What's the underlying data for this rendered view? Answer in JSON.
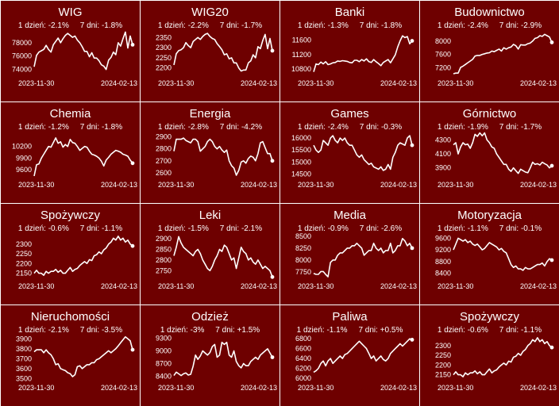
{
  "colors": {
    "background": "#6e0000",
    "line": "#ffffff",
    "divider": "#ffffff"
  },
  "chart_data": [
    {
      "type": "line",
      "title": "WIG",
      "stats": "1 dzień: -2.1%     7 dni: -1.8%",
      "x_start": "2023-11-30",
      "x_end": "2024-02-13",
      "yticks": [
        74000,
        76000,
        78000
      ],
      "ylim": [
        73000,
        80000
      ],
      "values": [
        74400,
        76100,
        76600,
        76800,
        77000,
        77600,
        77000,
        76600,
        77700,
        78200,
        78700,
        78000,
        78600,
        79100,
        79400,
        79100,
        78800,
        79000,
        78400,
        78000,
        77400,
        76700,
        76700,
        75900,
        76500,
        75700,
        75700,
        75300,
        74700,
        74500,
        74000,
        75400,
        75800,
        76600,
        76200,
        78000,
        77500,
        78600,
        79600,
        77200,
        79000,
        77700
      ]
    },
    {
      "type": "line",
      "title": "WIG20",
      "stats": "1 dzień: -2.2%     7 dni: -1.7%",
      "x_start": "2023-11-30",
      "x_end": "2024-02-13",
      "yticks": [
        2200,
        2250,
        2300,
        2350
      ],
      "ylim": [
        2160,
        2390
      ],
      "values": [
        2215,
        2270,
        2285,
        2290,
        2300,
        2325,
        2310,
        2300,
        2330,
        2340,
        2350,
        2340,
        2355,
        2365,
        2370,
        2355,
        2345,
        2340,
        2320,
        2305,
        2290,
        2265,
        2270,
        2245,
        2250,
        2225,
        2225,
        2200,
        2185,
        2190,
        2190,
        2225,
        2235,
        2265,
        2250,
        2305,
        2295,
        2335,
        2365,
        2295,
        2345,
        2285
      ]
    },
    {
      "type": "line",
      "title": "Banki",
      "stats": "1 dzień: -1.3%     7 dni: -1.8%",
      "x_start": "2023-11-30",
      "x_end": "2024-02-13",
      "yticks": [
        10800,
        11200,
        11600
      ],
      "ylim": [
        10600,
        11900
      ],
      "values": [
        10720,
        10940,
        10920,
        10990,
        10940,
        11000,
        10920,
        10940,
        10970,
        10980,
        11020,
        11010,
        11030,
        11020,
        11010,
        10980,
        10970,
        11040,
        11040,
        11000,
        11060,
        11020,
        11080,
        11000,
        10980,
        11060,
        11000,
        10950,
        10890,
        10980,
        11020,
        11060,
        10970,
        11080,
        11190,
        11410,
        11580,
        11720,
        11670,
        11700,
        11500,
        11580
      ]
    },
    {
      "type": "line",
      "title": "Budownictwo",
      "stats": "1 dzień: -2.4%     7 dni: -2.9%",
      "x_start": "2023-11-30",
      "x_end": "2024-02-13",
      "yticks": [
        7200,
        7600,
        8000
      ],
      "ylim": [
        6950,
        8350
      ],
      "values": [
        7020,
        7040,
        7040,
        7210,
        7250,
        7300,
        7350,
        7400,
        7450,
        7550,
        7570,
        7570,
        7600,
        7620,
        7640,
        7650,
        7700,
        7680,
        7720,
        7760,
        7700,
        7800,
        7760,
        7800,
        7820,
        7900,
        7860,
        7760,
        7890,
        7880,
        7880,
        7920,
        7940,
        8000,
        8080,
        8100,
        8160,
        8140,
        8200,
        8160,
        8120,
        7960
      ]
    },
    {
      "type": "line",
      "title": "Chemia",
      "stats": "1 dzień: -1.2%     7 dni: -1.8%",
      "x_start": "2023-11-30",
      "x_end": "2024-02-13",
      "yticks": [
        9600,
        9900,
        10200
      ],
      "ylim": [
        9400,
        10600
      ],
      "values": [
        9440,
        9730,
        9750,
        9900,
        10000,
        10100,
        10200,
        10180,
        10300,
        10420,
        10280,
        10320,
        10180,
        10250,
        10200,
        10380,
        10300,
        10280,
        10200,
        10100,
        10150,
        10200,
        10180,
        10080,
        10000,
        9980,
        9950,
        9900,
        9820,
        9700,
        9850,
        9920,
        10000,
        10050,
        10100,
        10080,
        10050,
        10000,
        9980,
        9950,
        9850,
        9770
      ]
    },
    {
      "type": "line",
      "title": "Energia",
      "stats": "1 dzień: -2.8%     7 dni: -4.2%",
      "x_start": "2023-11-30",
      "x_end": "2024-02-13",
      "yticks": [
        2600,
        2700,
        2800,
        2900
      ],
      "ylim": [
        2560,
        2950
      ],
      "values": [
        2780,
        2880,
        2880,
        2880,
        2890,
        2870,
        2860,
        2850,
        2880,
        2880,
        2860,
        2780,
        2800,
        2820,
        2860,
        2880,
        2860,
        2820,
        2800,
        2820,
        2790,
        2770,
        2790,
        2700,
        2660,
        2640,
        2580,
        2620,
        2690,
        2700,
        2680,
        2720,
        2740,
        2730,
        2700,
        2760,
        2850,
        2860,
        2810,
        2760,
        2760,
        2700
      ]
    },
    {
      "type": "line",
      "title": "Games",
      "stats": "1 dzień: -2.4%     7 dni: -0.3%",
      "x_start": "2023-11-30",
      "x_end": "2024-02-13",
      "yticks": [
        14500,
        15000,
        15500,
        16000
      ],
      "ylim": [
        14350,
        16300
      ],
      "values": [
        15700,
        15500,
        15400,
        15500,
        15900,
        15800,
        15700,
        16000,
        16100,
        15900,
        15800,
        16000,
        15900,
        16000,
        15800,
        15700,
        15700,
        15500,
        15300,
        15200,
        15300,
        15100,
        15000,
        14900,
        14950,
        14800,
        14750,
        14700,
        14800,
        14650,
        14700,
        14900,
        14700,
        15200,
        15400,
        15700,
        15800,
        15750,
        15700,
        16000,
        16100,
        15700
      ]
    },
    {
      "type": "line",
      "title": "Górnictwo",
      "stats": "1 dzień: -1.9%     7 dni: -1.7%",
      "x_start": "2023-11-30",
      "x_end": "2024-02-13",
      "yticks": [
        3900,
        4100,
        4300
      ],
      "ylim": [
        3760,
        4430
      ],
      "values": [
        4230,
        4260,
        4100,
        4200,
        4260,
        4230,
        4240,
        4180,
        4260,
        4380,
        4350,
        4400,
        4360,
        4400,
        4300,
        4260,
        4200,
        4180,
        4100,
        4050,
        4000,
        3950,
        3950,
        3880,
        3850,
        3900,
        3860,
        3820,
        3880,
        3860,
        3840,
        3830,
        3900,
        3980,
        3950,
        3960,
        3940,
        3980,
        3960,
        3940,
        3900,
        3930
      ]
    },
    {
      "type": "line",
      "title": "Spożywczy",
      "stats": "1 dzień: -0.6%     7 dni: -1.1%",
      "x_start": "2023-11-30",
      "x_end": "2024-02-13",
      "yticks": [
        2150,
        2200,
        2250,
        2300
      ],
      "ylim": [
        2120,
        2360
      ],
      "values": [
        2150,
        2165,
        2150,
        2150,
        2140,
        2160,
        2150,
        2160,
        2160,
        2170,
        2155,
        2165,
        2150,
        2150,
        2165,
        2180,
        2160,
        2170,
        2175,
        2190,
        2200,
        2210,
        2200,
        2220,
        2215,
        2240,
        2245,
        2260,
        2250,
        2270,
        2280,
        2300,
        2310,
        2330,
        2320,
        2340,
        2320,
        2330,
        2310,
        2320,
        2300,
        2290
      ]
    },
    {
      "type": "line",
      "title": "Leki",
      "stats": "1 dzień: -1.5%     7 dni: -2.1%",
      "x_start": "2023-11-30",
      "x_end": "2024-02-13",
      "yticks": [
        2750,
        2800,
        2850,
        2900
      ],
      "ylim": [
        2710,
        2930
      ],
      "values": [
        2820,
        2860,
        2910,
        2880,
        2860,
        2850,
        2840,
        2830,
        2820,
        2840,
        2850,
        2830,
        2800,
        2780,
        2760,
        2750,
        2770,
        2800,
        2820,
        2850,
        2840,
        2870,
        2860,
        2830,
        2800,
        2810,
        2760,
        2810,
        2860,
        2840,
        2830,
        2800,
        2810,
        2790,
        2780,
        2800,
        2780,
        2760,
        2770,
        2760,
        2750,
        2720
      ]
    },
    {
      "type": "line",
      "title": "Media",
      "stats": "1 dzień: -0.9%     7 dni: -2.6%",
      "x_start": "2023-11-30",
      "x_end": "2024-02-13",
      "yticks": [
        7750,
        8000,
        8250,
        8500
      ],
      "ylim": [
        7600,
        8580
      ],
      "values": [
        7720,
        7700,
        7700,
        7760,
        7760,
        7700,
        7650,
        7950,
        8000,
        8000,
        8100,
        8150,
        8150,
        8200,
        8250,
        8250,
        8300,
        8300,
        8350,
        8300,
        8250,
        8100,
        8150,
        8200,
        8200,
        8350,
        8250,
        8200,
        8250,
        8150,
        8200,
        8200,
        8350,
        8150,
        8200,
        8300,
        8300,
        8450,
        8400,
        8300,
        8350,
        8250
      ]
    },
    {
      "type": "line",
      "title": "Motoryzacja",
      "stats": "1 dzień: -1.1%     7 dni: -0.1%",
      "x_start": "2023-11-30",
      "x_end": "2024-02-13",
      "yticks": [
        8400,
        8800,
        9200,
        9600
      ],
      "ylim": [
        8200,
        9800
      ],
      "values": [
        9200,
        9400,
        9600,
        9550,
        9500,
        9550,
        9450,
        9500,
        9400,
        9350,
        9400,
        9300,
        9200,
        9250,
        9350,
        9450,
        9400,
        9350,
        9300,
        9200,
        9250,
        9150,
        9100,
        8900,
        8700,
        8600,
        8650,
        8550,
        8550,
        8500,
        8600,
        8550,
        8550,
        8600,
        8650,
        8700,
        8700,
        8750,
        8650,
        8800,
        8900,
        8850
      ]
    },
    {
      "type": "line",
      "title": "Nieruchomości",
      "stats": "1 dzień: -2.1%     7 dni: -3.5%",
      "x_start": "2023-11-30",
      "x_end": "2024-02-13",
      "yticks": [
        3500,
        3600,
        3700,
        3800,
        3900
      ],
      "ylim": [
        3480,
        3950
      ],
      "values": [
        3770,
        3790,
        3790,
        3790,
        3760,
        3790,
        3760,
        3740,
        3700,
        3640,
        3650,
        3600,
        3590,
        3580,
        3560,
        3550,
        3520,
        3540,
        3620,
        3630,
        3600,
        3620,
        3640,
        3640,
        3660,
        3660,
        3690,
        3700,
        3720,
        3740,
        3760,
        3780,
        3760,
        3780,
        3800,
        3830,
        3860,
        3890,
        3920,
        3900,
        3880,
        3790
      ]
    },
    {
      "type": "line",
      "title": "Odzież",
      "stats": "1 dzień: -3%     7 dni: +1.5%",
      "x_start": "2023-11-30",
      "x_end": "2024-02-13",
      "yticks": [
        8400,
        8700,
        9000,
        9300
      ],
      "ylim": [
        8300,
        9400
      ],
      "values": [
        8420,
        8500,
        8460,
        8420,
        8460,
        8480,
        8430,
        8450,
        8640,
        8900,
        8800,
        8880,
        9000,
        8950,
        8900,
        8960,
        9100,
        9150,
        8850,
        8900,
        9200,
        9150,
        9200,
        8900,
        8850,
        9000,
        8750,
        8650,
        8600,
        8700,
        8650,
        8650,
        8750,
        8800,
        8850,
        8800,
        8900,
        8950,
        9000,
        9050,
        8950,
        8850
      ]
    },
    {
      "type": "line",
      "title": "Paliwa",
      "stats": "1 dzień: -1.1%     7 dni: +0.5%",
      "x_start": "2023-11-30",
      "x_end": "2024-02-13",
      "yticks": [
        6000,
        6200,
        6400,
        6600,
        6800
      ],
      "ylim": [
        5950,
        6900
      ],
      "values": [
        6120,
        6150,
        6200,
        6300,
        6350,
        6250,
        6350,
        6400,
        6300,
        6350,
        6400,
        6450,
        6400,
        6480,
        6500,
        6550,
        6600,
        6650,
        6700,
        6750,
        6700,
        6650,
        6600,
        6500,
        6400,
        6450,
        6350,
        6400,
        6450,
        6380,
        6350,
        6400,
        6500,
        6550,
        6600,
        6650,
        6700,
        6650,
        6700,
        6750,
        6800,
        6780
      ]
    },
    {
      "type": "line",
      "title": "Spożywczy",
      "stats": "1 dzień: -0.6%     7 dni: -1.1%",
      "x_start": "2023-11-30",
      "x_end": "2024-02-13",
      "yticks": [
        2150,
        2200,
        2250,
        2300
      ],
      "ylim": [
        2120,
        2360
      ],
      "values": [
        2150,
        2165,
        2150,
        2150,
        2140,
        2160,
        2150,
        2160,
        2160,
        2170,
        2155,
        2165,
        2150,
        2150,
        2165,
        2180,
        2160,
        2170,
        2175,
        2190,
        2200,
        2210,
        2200,
        2220,
        2215,
        2240,
        2245,
        2260,
        2250,
        2270,
        2280,
        2300,
        2310,
        2330,
        2320,
        2340,
        2320,
        2330,
        2310,
        2320,
        2300,
        2290
      ]
    }
  ]
}
